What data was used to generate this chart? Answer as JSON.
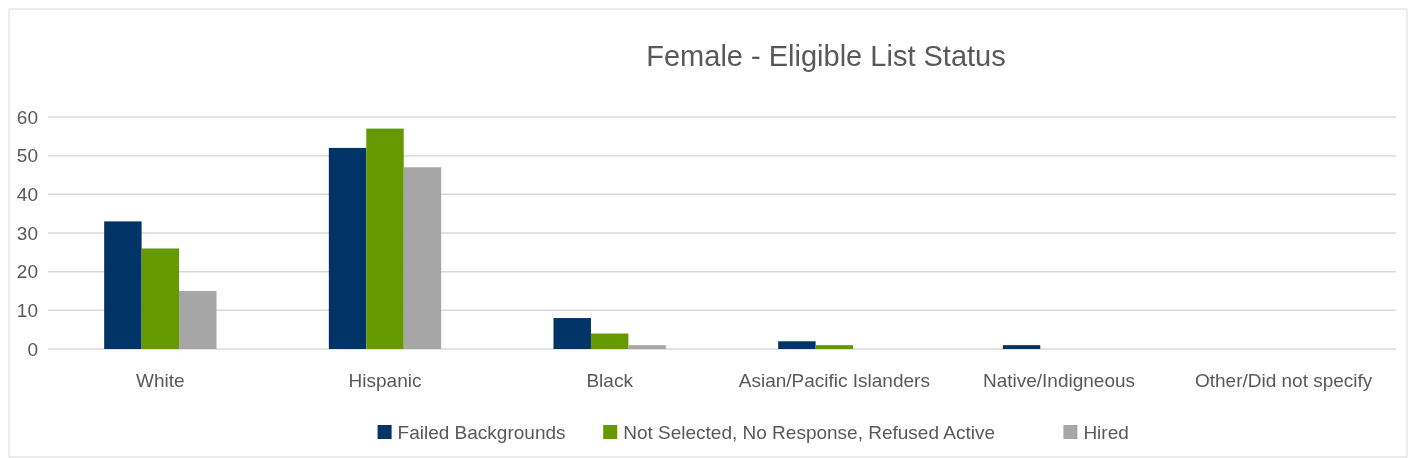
{
  "chart_data": {
    "type": "bar",
    "title": "Female - Eligible List Status",
    "categories": [
      "White",
      "Hispanic",
      "Black",
      "Asian/Pacific Islanders",
      "Native/Indigneous",
      "Other/Did not specify"
    ],
    "series": [
      {
        "name": "Failed Backgrounds",
        "color": "#003366",
        "values": [
          33,
          52,
          8,
          2,
          1,
          0
        ]
      },
      {
        "name": "Not Selected, No Response, Refused Active",
        "color": "#669900",
        "values": [
          26,
          57,
          4,
          1,
          0,
          0
        ]
      },
      {
        "name": "Hired",
        "color": "#a6a6a6",
        "values": [
          15,
          47,
          1,
          0,
          0,
          0
        ]
      }
    ],
    "ylim": [
      0,
      60
    ],
    "yticks": [
      0,
      10,
      20,
      30,
      40,
      50,
      60
    ],
    "grid": "y",
    "legend": "bottom"
  }
}
